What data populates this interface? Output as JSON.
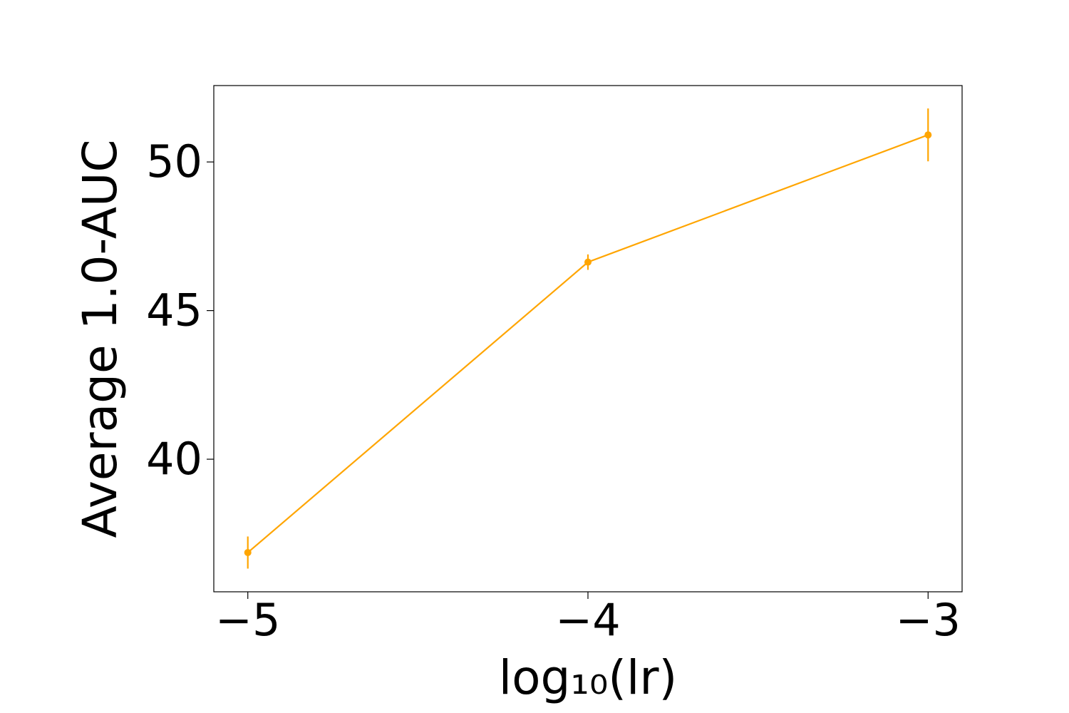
{
  "chart_data": {
    "type": "line",
    "xlabel": "log₁₀(lr)",
    "ylabel": "Average 1.0-AUC",
    "x": [
      -5,
      -4,
      -3
    ],
    "series": [
      {
        "name": "Average 1.0-AUC",
        "color": "#ffa500",
        "values": [
          36.86,
          46.63,
          50.91
        ],
        "errors": [
          0.54,
          0.26,
          0.89
        ]
      }
    ],
    "xlim": [
      -5.1,
      -2.9
    ],
    "xticks": [
      {
        "value": -5,
        "label": "−5"
      },
      {
        "value": -4,
        "label": "−4"
      },
      {
        "value": -3,
        "label": "−3"
      }
    ],
    "ylim": [
      35.54,
      52.57
    ],
    "yticks": [
      40,
      45,
      50
    ],
    "grid": false
  }
}
